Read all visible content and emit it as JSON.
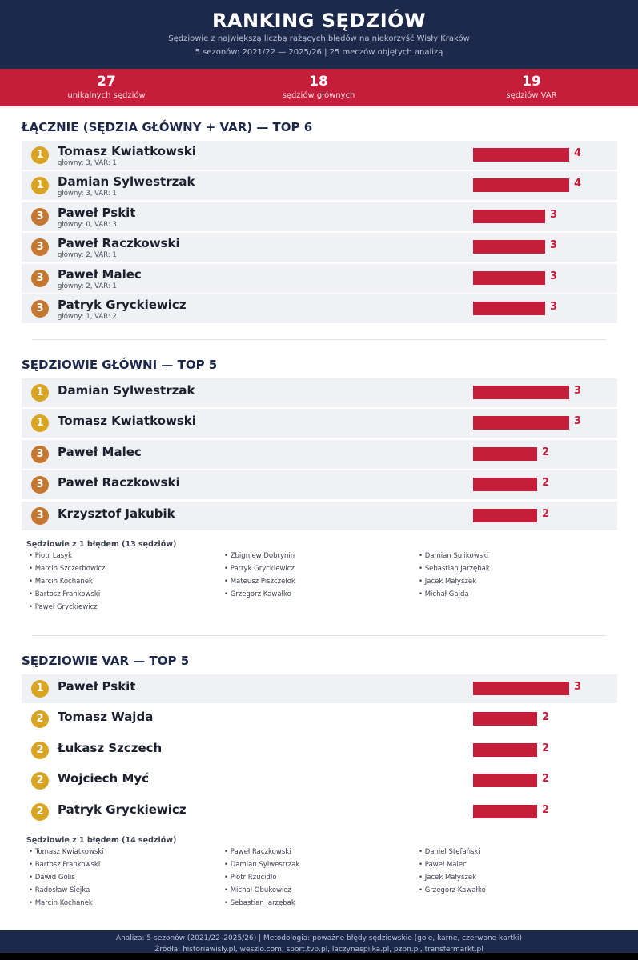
{
  "header": {
    "title": "RANKING SĘDZIÓW",
    "subtitle1": "Sędziowie z największą liczbą rażących błędów na niekorzyść Wisły Kraków",
    "subtitle2": "5 sezonów: 2021/22 — 2025/26 | 25 meczów objętych analizą"
  },
  "stats": [
    {
      "value": "27",
      "label": "unikalnych sędziów"
    },
    {
      "value": "18",
      "label": "sędziów głównych"
    },
    {
      "value": "19",
      "label": "sędziów VAR"
    }
  ],
  "sections": {
    "total_title": "ŁĄCZNIE (SĘDZIA GŁÓWNY + VAR) — TOP 6",
    "main_title": "SĘDZIOWIE GŁÓWNI — TOP 5",
    "var_title": "SĘDZIOWIE VAR — TOP 5"
  },
  "colors": {
    "navy": "#1c294b",
    "accent_red": "#c41e3a",
    "gold_badge": "#d9a421",
    "bronze_badge": "#c6772f",
    "row_shade": "#f0f1f5"
  },
  "chart_data": [
    {
      "type": "bar",
      "orientation": "horizontal",
      "title": "ŁĄCZNIE (SĘDZIA GŁÓWNY + VAR) — TOP 6",
      "categories": [
        "Tomasz Kwiatkowski",
        "Damian Sylwestrzak",
        "Paweł Pskit",
        "Paweł Raczkowski",
        "Paweł Malec",
        "Patryk Gryckiewicz"
      ],
      "values": [
        4,
        4,
        3,
        3,
        3,
        3
      ],
      "ranks": [
        "1",
        "1",
        "3",
        "3",
        "3",
        "3"
      ],
      "details": [
        "główny: 3, VAR: 1",
        "główny: 3, VAR: 1",
        "główny: 0, VAR: 3",
        "główny: 2, VAR: 1",
        "główny: 2, VAR: 1",
        "główny: 1, VAR: 2"
      ],
      "xlim": [
        0,
        4
      ]
    },
    {
      "type": "bar",
      "orientation": "horizontal",
      "title": "SĘDZIOWIE GŁÓWNI — TOP 5",
      "categories": [
        "Damian Sylwestrzak",
        "Tomasz Kwiatkowski",
        "Paweł Malec",
        "Paweł Raczkowski",
        "Krzysztof Jakubik"
      ],
      "values": [
        3,
        3,
        2,
        2,
        2
      ],
      "ranks": [
        "1",
        "1",
        "3",
        "3",
        "3"
      ],
      "xlim": [
        0,
        3
      ]
    },
    {
      "type": "bar",
      "orientation": "horizontal",
      "title": "SĘDZIOWIE VAR — TOP 5",
      "categories": [
        "Paweł Pskit",
        "Tomasz Wajda",
        "Łukasz Szczech",
        "Wojciech Myć",
        "Patryk Gryckiewicz"
      ],
      "values": [
        3,
        2,
        2,
        2,
        2
      ],
      "ranks": [
        "1",
        "2",
        "2",
        "2",
        "2"
      ],
      "xlim": [
        0,
        3
      ]
    }
  ],
  "main_ones": {
    "title": "Sędziowie z 1 błędem (13 sędziów)",
    "names": [
      "Piotr Lasyk",
      "Zbigniew Dobrynin",
      "Damian Sulikowski",
      "Marcin Szczerbowicz",
      "Patryk Gryckiewicz",
      "Sebastian Jarzębak",
      "Marcin Kochanek",
      "Mateusz Piszczelok",
      "Jacek Małyszek",
      "Bartosz Frankowski",
      "Grzegorz Kawałko",
      "Michał Gajda",
      "Paweł Gryckiewicz"
    ]
  },
  "var_ones": {
    "title": "Sędziowie z 1 błędem (14 sędziów)",
    "names": [
      "Tomasz Kwiatkowski",
      "Paweł Raczkowski",
      "Daniel Stefański",
      "Bartosz Frankowski",
      "Damian Sylwestrzak",
      "Paweł Malec",
      "Dawid Golis",
      "Piotr Rzucidło",
      "Jacek Małyszek",
      "Radosław Siejka",
      "Michał Obukowicz",
      "Grzegorz Kawałko",
      "Marcin Kochanek",
      "Sebastian Jarzębak"
    ]
  },
  "footer": {
    "line1": "Analiza: 5 sezonów (2021/22–2025/26) | Metodologia: poważne błędy sędziowskie (gole, karne, czerwone kartki)",
    "line2": "Źródła: historiawisly.pl, weszlo.com, sport.tvp.pl, laczynaspilka.pl, pzpn.pl, transfermarkt.pl"
  }
}
